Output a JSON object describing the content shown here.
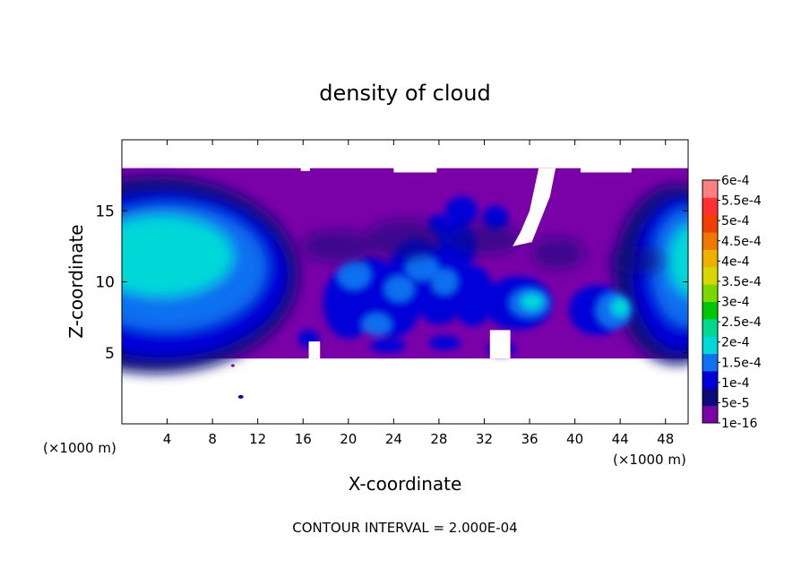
{
  "chart_data": {
    "type": "heatmap",
    "title": "density of cloud",
    "xlabel": "X-coordinate",
    "ylabel": "Z-coordinate",
    "x_unit_left": "(×1000 m)",
    "x_unit_right": "(×1000 m)",
    "footer": "CONTOUR INTERVAL = 2.000E-04",
    "xlim": [
      0,
      50
    ],
    "ylim": [
      0,
      20
    ],
    "x_ticks": [
      4,
      8,
      12,
      16,
      20,
      24,
      28,
      32,
      36,
      40,
      44,
      48
    ],
    "y_ticks": [
      5,
      10,
      15
    ],
    "cloud_layer": {
      "base": 4.6,
      "top": 18
    },
    "colorbar": {
      "labels": [
        "1e-16",
        "5e-5",
        "1e-4",
        "1.5e-4",
        "2e-4",
        "2.5e-4",
        "3e-4",
        "3.5e-4",
        "4e-4",
        "4.5e-4",
        "5e-4",
        "5.5e-4",
        "6e-4"
      ],
      "colors": [
        "#7a00a8",
        "#0a0a78",
        "#0000d8",
        "#0f70f0",
        "#00d8d8",
        "#00d890",
        "#00c800",
        "#78d800",
        "#d8d800",
        "#f0b000",
        "#f07800",
        "#f04000",
        "#ff3030",
        "#ff8080"
      ]
    },
    "features": [
      {
        "label": "left cell",
        "x": 4,
        "z": 11.5,
        "peak": "2e-4"
      },
      {
        "label": "central turbulent cells",
        "x": 26,
        "z": 9.5,
        "peak": "1.5e-4"
      },
      {
        "label": "right cell",
        "x": 48,
        "z": 11.5,
        "peak": "2e-4"
      }
    ]
  }
}
